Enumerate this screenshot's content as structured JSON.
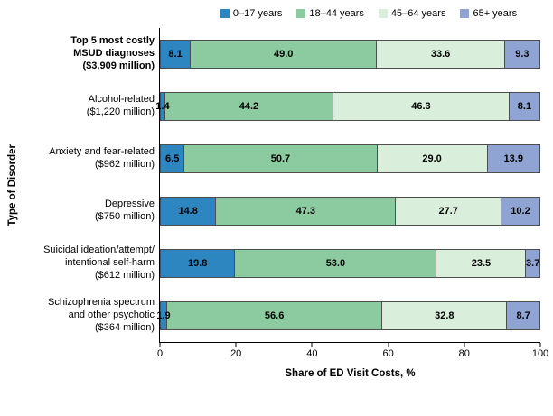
{
  "chart_data": {
    "type": "bar",
    "orientation": "horizontal",
    "stacked": true,
    "xlabel": "Share of ED Visit Costs,  %",
    "ylabel": "Type of Disorder",
    "xlim": [
      0,
      100
    ],
    "xticks": [
      "0",
      "20",
      "40",
      "60",
      "80",
      "100"
    ],
    "legend_position": "top",
    "grid": false,
    "categories": [
      {
        "lines": [
          "Top 5 most costly",
          "MSUD diagnoses",
          "($3,909 million)"
        ],
        "bold": true
      },
      {
        "lines": [
          "Alcohol-related",
          "($1,220 million)"
        ],
        "bold": false
      },
      {
        "lines": [
          "Anxiety  and fear-related",
          "($962 million)"
        ],
        "bold": false
      },
      {
        "lines": [
          "Depressive",
          "($750 million)"
        ],
        "bold": false
      },
      {
        "lines": [
          "Suicidal ideation/attempt/",
          "intentional self-harm",
          "($612 million)"
        ],
        "bold": false
      },
      {
        "lines": [
          "Schizophrenia spectrum",
          "and other psychotic",
          "($364 million)"
        ],
        "bold": false
      }
    ],
    "series": [
      {
        "name": "0–17 years",
        "color": "#2E86C1",
        "values": [
          8.1,
          1.4,
          6.5,
          14.8,
          19.8,
          1.9
        ]
      },
      {
        "name": "18–44 years",
        "color": "#8CCBA0",
        "values": [
          49.0,
          44.2,
          50.7,
          47.3,
          53.0,
          56.6
        ]
      },
      {
        "name": "45–64 years",
        "color": "#D9EEDB",
        "values": [
          33.6,
          46.3,
          29.0,
          27.7,
          23.5,
          32.8
        ]
      },
      {
        "name": "65+ years",
        "color": "#8FA4D2",
        "values": [
          9.3,
          8.1,
          13.9,
          10.2,
          3.7,
          8.7
        ]
      }
    ]
  }
}
